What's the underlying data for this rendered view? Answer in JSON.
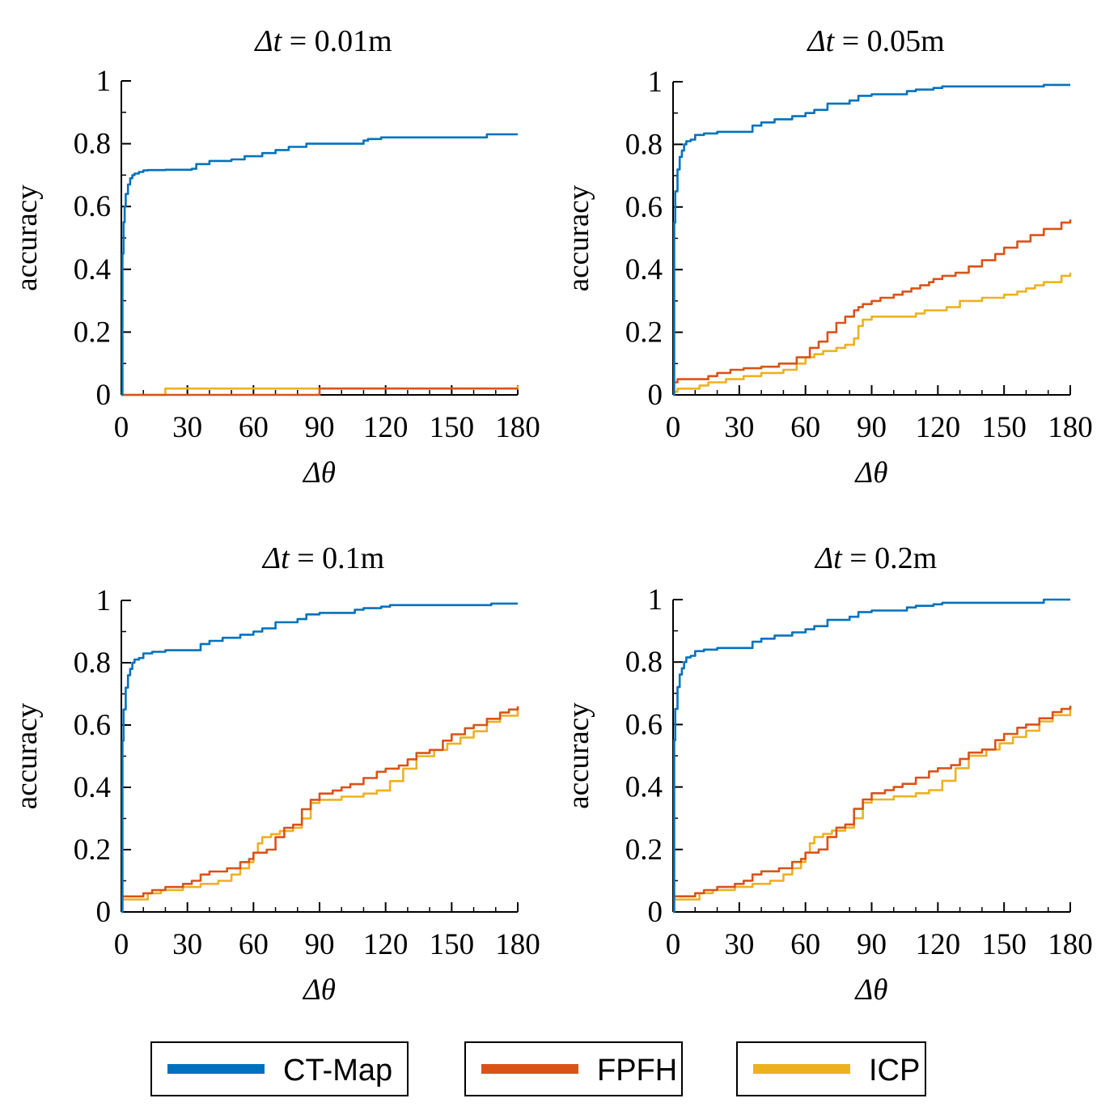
{
  "chart_data": [
    {
      "type": "line",
      "title_var": "Δt",
      "title_rest": " = 0.01m",
      "xlabel": "Δθ",
      "ylabel": "accuracy",
      "xlim": [
        0,
        180
      ],
      "ylim": [
        0,
        1
      ],
      "xticks": [
        0,
        30,
        60,
        90,
        120,
        150,
        180
      ],
      "yticks": [
        0,
        0.2,
        0.4,
        0.6,
        0.8,
        1
      ],
      "ytick_labels": [
        "0",
        "0.2",
        "0.4",
        "0.6",
        "0.8",
        "1"
      ],
      "series": [
        {
          "name": "CT-Map",
          "color": "#0072BD",
          "x": [
            0,
            0.5,
            1,
            1.5,
            2,
            3,
            4,
            5,
            6,
            8,
            10,
            12,
            20,
            32,
            34,
            40,
            50,
            56,
            64,
            70,
            76,
            84,
            90,
            110,
            112,
            118,
            124,
            150,
            164,
            166,
            180
          ],
          "y": [
            0,
            0.45,
            0.55,
            0.6,
            0.64,
            0.67,
            0.69,
            0.7,
            0.705,
            0.71,
            0.715,
            0.716,
            0.717,
            0.72,
            0.735,
            0.745,
            0.75,
            0.76,
            0.77,
            0.78,
            0.79,
            0.8,
            0.8,
            0.81,
            0.815,
            0.82,
            0.82,
            0.82,
            0.82,
            0.83,
            0.83
          ]
        },
        {
          "name": "FPFH",
          "color": "#D95319",
          "x": [
            0,
            89,
            90,
            180
          ],
          "y": [
            0,
            0,
            0.02,
            0.02
          ]
        },
        {
          "name": "ICP",
          "color": "#EDB120",
          "x": [
            0,
            19,
            20,
            178,
            180
          ],
          "y": [
            0,
            0,
            0.02,
            0.02,
            0.03
          ]
        }
      ]
    },
    {
      "type": "line",
      "title_var": "Δt",
      "title_rest": " = 0.05m",
      "xlabel": "Δθ",
      "ylabel": "accuracy",
      "xlim": [
        0,
        180
      ],
      "ylim": [
        0,
        1
      ],
      "xticks": [
        0,
        30,
        60,
        90,
        120,
        150,
        180
      ],
      "yticks": [
        0,
        0.2,
        0.4,
        0.6,
        0.8,
        1
      ],
      "ytick_labels": [
        "0",
        "0.2",
        "0.4",
        "0.6",
        "0.8",
        "1"
      ],
      "series": [
        {
          "name": "CT-Map",
          "color": "#0072BD",
          "x": [
            0,
            0.5,
            1,
            2,
            3,
            4,
            5,
            6,
            8,
            10,
            14,
            20,
            32,
            36,
            40,
            46,
            54,
            60,
            64,
            70,
            80,
            84,
            90,
            106,
            110,
            118,
            122,
            140,
            164,
            168,
            180
          ],
          "y": [
            0,
            0.55,
            0.65,
            0.72,
            0.76,
            0.78,
            0.8,
            0.81,
            0.815,
            0.83,
            0.835,
            0.84,
            0.84,
            0.86,
            0.87,
            0.88,
            0.89,
            0.9,
            0.91,
            0.93,
            0.94,
            0.955,
            0.96,
            0.97,
            0.975,
            0.98,
            0.985,
            0.985,
            0.985,
            0.99,
            0.99
          ]
        },
        {
          "name": "FPFH",
          "color": "#D95319",
          "x": [
            0,
            2,
            16,
            20,
            26,
            32,
            40,
            48,
            56,
            62,
            66,
            70,
            74,
            78,
            82,
            84,
            86,
            90,
            94,
            100,
            104,
            108,
            112,
            116,
            118,
            122,
            128,
            134,
            140,
            146,
            150,
            156,
            162,
            168,
            176,
            180
          ],
          "y": [
            0.04,
            0.05,
            0.06,
            0.07,
            0.08,
            0.085,
            0.09,
            0.1,
            0.12,
            0.15,
            0.17,
            0.2,
            0.23,
            0.25,
            0.27,
            0.28,
            0.29,
            0.3,
            0.31,
            0.32,
            0.33,
            0.34,
            0.35,
            0.36,
            0.37,
            0.38,
            0.39,
            0.41,
            0.43,
            0.45,
            0.47,
            0.49,
            0.51,
            0.53,
            0.55,
            0.56
          ]
        },
        {
          "name": "ICP",
          "color": "#EDB120",
          "x": [
            0,
            2,
            12,
            16,
            24,
            32,
            40,
            50,
            56,
            60,
            64,
            68,
            74,
            78,
            82,
            84,
            86,
            90,
            100,
            110,
            114,
            120,
            124,
            130,
            140,
            150,
            156,
            160,
            164,
            168,
            176,
            180
          ],
          "y": [
            0.01,
            0.02,
            0.03,
            0.04,
            0.05,
            0.06,
            0.07,
            0.08,
            0.1,
            0.12,
            0.13,
            0.14,
            0.15,
            0.16,
            0.18,
            0.22,
            0.24,
            0.25,
            0.25,
            0.26,
            0.27,
            0.27,
            0.28,
            0.3,
            0.31,
            0.32,
            0.33,
            0.34,
            0.35,
            0.36,
            0.38,
            0.39
          ]
        }
      ]
    },
    {
      "type": "line",
      "title_var": "Δt",
      "title_rest": " = 0.1m",
      "xlabel": "Δθ",
      "ylabel": "accuracy",
      "xlim": [
        0,
        180
      ],
      "ylim": [
        0,
        1
      ],
      "xticks": [
        0,
        30,
        60,
        90,
        120,
        150,
        180
      ],
      "yticks": [
        0,
        0.2,
        0.4,
        0.6,
        0.8,
        1
      ],
      "ytick_labels": [
        "0",
        "0.2",
        "0.4",
        "0.6",
        "0.8",
        "1"
      ],
      "series": [
        {
          "name": "CT-Map",
          "color": "#0072BD",
          "x": [
            0,
            0.5,
            1,
            2,
            3,
            4,
            5,
            6,
            8,
            10,
            14,
            20,
            32,
            36,
            40,
            46,
            54,
            60,
            64,
            70,
            80,
            84,
            90,
            106,
            110,
            118,
            122,
            140,
            164,
            168,
            180
          ],
          "y": [
            0,
            0.55,
            0.65,
            0.72,
            0.76,
            0.78,
            0.8,
            0.81,
            0.815,
            0.83,
            0.835,
            0.84,
            0.84,
            0.86,
            0.87,
            0.88,
            0.89,
            0.9,
            0.91,
            0.93,
            0.94,
            0.955,
            0.96,
            0.97,
            0.975,
            0.98,
            0.985,
            0.985,
            0.985,
            0.99,
            0.99
          ]
        },
        {
          "name": "FPFH",
          "color": "#D95319",
          "x": [
            0,
            10,
            14,
            20,
            28,
            32,
            36,
            40,
            48,
            54,
            58,
            60,
            66,
            70,
            74,
            78,
            82,
            86,
            90,
            96,
            100,
            104,
            110,
            116,
            120,
            126,
            130,
            134,
            140,
            146,
            150,
            156,
            160,
            166,
            172,
            176,
            180
          ],
          "y": [
            0.05,
            0.06,
            0.07,
            0.08,
            0.09,
            0.1,
            0.12,
            0.13,
            0.14,
            0.16,
            0.17,
            0.19,
            0.2,
            0.24,
            0.27,
            0.28,
            0.33,
            0.36,
            0.38,
            0.39,
            0.4,
            0.41,
            0.43,
            0.45,
            0.46,
            0.47,
            0.49,
            0.51,
            0.52,
            0.55,
            0.57,
            0.59,
            0.6,
            0.62,
            0.64,
            0.65,
            0.66
          ]
        },
        {
          "name": "ICP",
          "color": "#EDB120",
          "x": [
            0,
            2,
            12,
            18,
            28,
            36,
            44,
            50,
            54,
            58,
            60,
            62,
            64,
            68,
            72,
            78,
            82,
            86,
            90,
            100,
            110,
            116,
            122,
            128,
            134,
            142,
            148,
            154,
            160,
            166,
            172,
            180
          ],
          "y": [
            0.04,
            0.04,
            0.06,
            0.07,
            0.08,
            0.09,
            0.1,
            0.12,
            0.14,
            0.16,
            0.19,
            0.22,
            0.24,
            0.25,
            0.26,
            0.27,
            0.3,
            0.35,
            0.36,
            0.37,
            0.38,
            0.39,
            0.42,
            0.46,
            0.5,
            0.52,
            0.54,
            0.56,
            0.58,
            0.61,
            0.63,
            0.65
          ]
        }
      ]
    },
    {
      "type": "line",
      "title_var": "Δt",
      "title_rest": " = 0.2m",
      "xlabel": "Δθ",
      "ylabel": "accuracy",
      "xlim": [
        0,
        180
      ],
      "ylim": [
        0,
        1
      ],
      "xticks": [
        0,
        30,
        60,
        90,
        120,
        150,
        180
      ],
      "yticks": [
        0,
        0.2,
        0.4,
        0.6,
        0.8,
        1
      ],
      "ytick_labels": [
        "0",
        "0.2",
        "0.4",
        "0.6",
        "0.8",
        "1"
      ],
      "series": [
        {
          "name": "CT-Map",
          "color": "#0072BD",
          "x": [
            0,
            0.5,
            1,
            2,
            3,
            4,
            5,
            6,
            8,
            10,
            14,
            20,
            32,
            36,
            40,
            46,
            54,
            60,
            64,
            70,
            80,
            84,
            90,
            106,
            110,
            118,
            122,
            140,
            164,
            168,
            180
          ],
          "y": [
            0,
            0.55,
            0.65,
            0.72,
            0.76,
            0.78,
            0.8,
            0.815,
            0.82,
            0.835,
            0.84,
            0.845,
            0.845,
            0.865,
            0.875,
            0.885,
            0.895,
            0.905,
            0.915,
            0.935,
            0.945,
            0.96,
            0.965,
            0.975,
            0.98,
            0.985,
            0.99,
            0.99,
            0.99,
            1.0,
            1.0
          ]
        },
        {
          "name": "FPFH",
          "color": "#D95319",
          "x": [
            0,
            10,
            14,
            20,
            28,
            32,
            36,
            40,
            48,
            54,
            58,
            60,
            66,
            70,
            74,
            78,
            82,
            86,
            90,
            96,
            100,
            104,
            110,
            116,
            120,
            126,
            130,
            134,
            140,
            146,
            150,
            156,
            160,
            166,
            172,
            176,
            180
          ],
          "y": [
            0.05,
            0.06,
            0.07,
            0.08,
            0.09,
            0.1,
            0.12,
            0.13,
            0.14,
            0.16,
            0.17,
            0.19,
            0.2,
            0.24,
            0.27,
            0.28,
            0.33,
            0.36,
            0.38,
            0.39,
            0.4,
            0.41,
            0.43,
            0.45,
            0.46,
            0.47,
            0.49,
            0.51,
            0.52,
            0.55,
            0.57,
            0.59,
            0.6,
            0.62,
            0.64,
            0.65,
            0.66
          ]
        },
        {
          "name": "ICP",
          "color": "#EDB120",
          "x": [
            0,
            2,
            12,
            18,
            28,
            36,
            44,
            50,
            54,
            58,
            60,
            62,
            64,
            68,
            72,
            78,
            82,
            86,
            90,
            100,
            110,
            116,
            122,
            128,
            134,
            142,
            148,
            154,
            160,
            166,
            172,
            180
          ],
          "y": [
            0.04,
            0.04,
            0.06,
            0.07,
            0.08,
            0.09,
            0.1,
            0.12,
            0.14,
            0.16,
            0.19,
            0.22,
            0.24,
            0.25,
            0.26,
            0.27,
            0.3,
            0.35,
            0.36,
            0.37,
            0.38,
            0.39,
            0.42,
            0.46,
            0.5,
            0.52,
            0.54,
            0.56,
            0.58,
            0.61,
            0.63,
            0.66
          ]
        }
      ]
    }
  ],
  "legend": {
    "position": "bottom",
    "entries": [
      {
        "name": "CT-Map",
        "color": "#0072BD"
      },
      {
        "name": "FPFH",
        "color": "#D95319"
      },
      {
        "name": "ICP",
        "color": "#EDB120"
      }
    ]
  }
}
